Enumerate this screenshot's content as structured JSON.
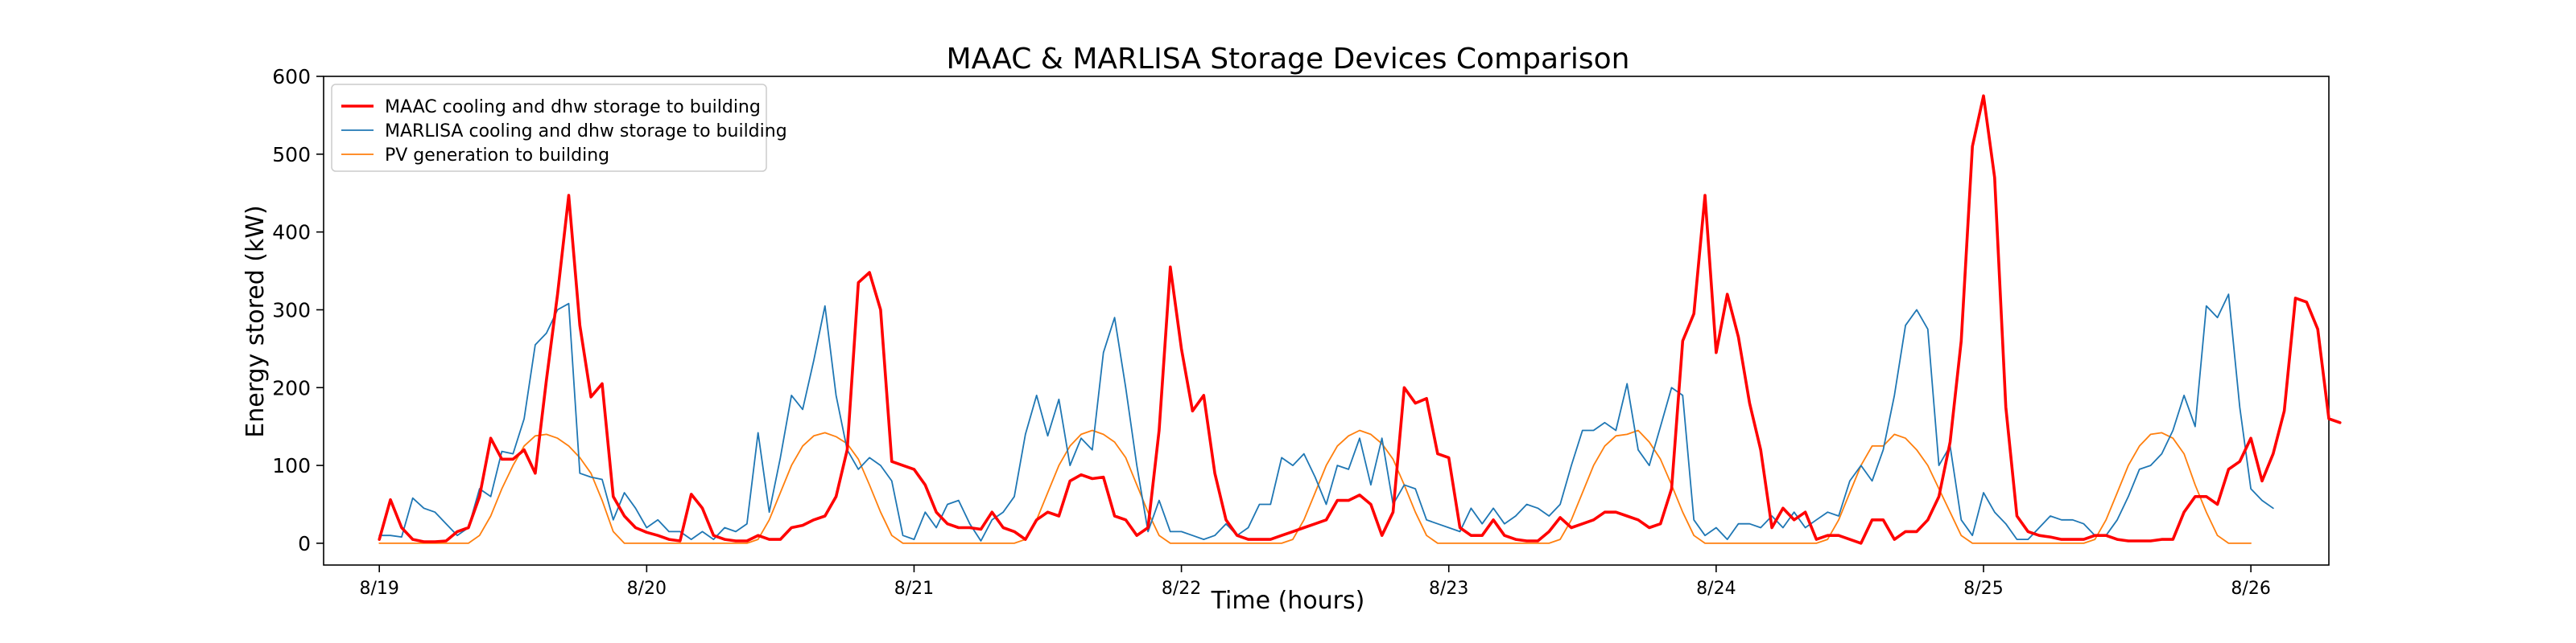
{
  "chart_data": {
    "type": "line",
    "title": "MAAC & MARLISA Storage Devices Comparison",
    "xlabel": "Time (hours)",
    "ylabel": "Energy stored (kW)",
    "x_unit": "hour",
    "x_start": "8/19 00:00",
    "x_step_hours": 1,
    "x_ticks": [
      "8/19",
      "8/20",
      "8/21",
      "8/22",
      "8/23",
      "8/24",
      "8/25",
      "8/26"
    ],
    "xlim": [
      "8/18 19:00",
      "8/26 07:00"
    ],
    "y_ticks": [
      0,
      100,
      200,
      300,
      400,
      500,
      600
    ],
    "ylim": [
      -28,
      600
    ],
    "grid": false,
    "legend_position": "top-left",
    "series": [
      {
        "name": "MAAC cooling and dhw storage to building",
        "color": "#ff0000",
        "values": [
          5,
          56,
          20,
          5,
          2,
          2,
          3,
          15,
          20,
          60,
          135,
          108,
          108,
          120,
          90,
          210,
          320,
          447,
          280,
          188,
          205,
          60,
          35,
          20,
          14,
          10,
          5,
          3,
          63,
          45,
          10,
          5,
          3,
          3,
          10,
          5,
          5,
          20,
          23,
          30,
          35,
          60,
          120,
          335,
          348,
          300,
          105,
          100,
          95,
          75,
          40,
          25,
          20,
          20,
          18,
          40,
          20,
          15,
          5,
          30,
          40,
          35,
          80,
          88,
          83,
          85,
          35,
          30,
          10,
          20,
          145,
          355,
          250,
          170,
          190,
          90,
          30,
          10,
          5,
          5,
          5,
          10,
          15,
          20,
          25,
          30,
          55,
          55,
          62,
          50,
          10,
          40,
          200,
          180,
          186,
          115,
          110,
          20,
          10,
          10,
          30,
          10,
          5,
          3,
          3,
          15,
          33,
          20,
          25,
          30,
          40,
          40,
          35,
          30,
          20,
          25,
          70,
          260,
          295,
          447,
          245,
          320,
          265,
          180,
          120,
          20,
          45,
          30,
          40,
          5,
          10,
          10,
          5,
          0,
          30,
          30,
          5,
          15,
          15,
          30,
          60,
          130,
          260,
          510,
          575,
          470,
          175,
          35,
          15,
          10,
          8,
          5,
          5,
          5,
          10,
          10,
          5,
          3,
          3,
          3,
          5,
          5,
          40,
          60,
          60,
          50,
          95,
          105,
          135,
          80,
          115,
          170,
          315,
          310,
          275,
          160,
          155
        ]
      },
      {
        "name": "MARLISA cooling and dhw storage to building",
        "color": "#1f77b4",
        "values": [
          10,
          10,
          8,
          58,
          45,
          40,
          25,
          10,
          20,
          70,
          60,
          118,
          115,
          160,
          255,
          270,
          300,
          308,
          90,
          85,
          82,
          30,
          65,
          45,
          20,
          30,
          15,
          15,
          5,
          15,
          5,
          20,
          15,
          25,
          142,
          40,
          110,
          190,
          172,
          235,
          305,
          190,
          120,
          95,
          110,
          100,
          80,
          10,
          5,
          40,
          20,
          50,
          55,
          25,
          3,
          30,
          40,
          60,
          140,
          190,
          138,
          185,
          100,
          135,
          120,
          245,
          290,
          200,
          100,
          15,
          55,
          15,
          15,
          10,
          5,
          10,
          25,
          10,
          20,
          50,
          50,
          110,
          100,
          115,
          85,
          50,
          100,
          95,
          135,
          75,
          135,
          50,
          75,
          70,
          30,
          25,
          20,
          15,
          45,
          25,
          45,
          25,
          35,
          50,
          45,
          35,
          50,
          100,
          145,
          145,
          155,
          145,
          205,
          120,
          100,
          150,
          200,
          190,
          30,
          10,
          20,
          5,
          25,
          25,
          20,
          35,
          20,
          40,
          20,
          30,
          40,
          35,
          80,
          100,
          80,
          120,
          190,
          280,
          300,
          275,
          100,
          125,
          30,
          10,
          65,
          40,
          25,
          5,
          5,
          20,
          35,
          30,
          30,
          25,
          10,
          10,
          30,
          60,
          95,
          100,
          115,
          145,
          190,
          150,
          305,
          290,
          320,
          175,
          70,
          55,
          45
        ]
      },
      {
        "name": "PV generation to building",
        "color": "#ff7f0e",
        "values": [
          0,
          0,
          0,
          0,
          0,
          0,
          0,
          0,
          0,
          10,
          35,
          70,
          100,
          125,
          138,
          140,
          135,
          125,
          110,
          90,
          55,
          15,
          0,
          0,
          0,
          0,
          0,
          0,
          0,
          0,
          0,
          0,
          0,
          0,
          5,
          30,
          65,
          100,
          125,
          138,
          142,
          137,
          128,
          108,
          75,
          40,
          10,
          0,
          0,
          0,
          0,
          0,
          0,
          0,
          0,
          0,
          0,
          0,
          5,
          30,
          65,
          100,
          125,
          140,
          145,
          140,
          130,
          110,
          75,
          40,
          10,
          0,
          0,
          0,
          0,
          0,
          0,
          0,
          0,
          0,
          0,
          0,
          5,
          30,
          65,
          100,
          125,
          138,
          145,
          140,
          128,
          108,
          75,
          40,
          10,
          0,
          0,
          0,
          0,
          0,
          0,
          0,
          0,
          0,
          0,
          0,
          5,
          30,
          65,
          100,
          125,
          138,
          140,
          145,
          130,
          108,
          75,
          40,
          10,
          0,
          0,
          0,
          0,
          0,
          0,
          0,
          0,
          0,
          0,
          0,
          5,
          30,
          65,
          100,
          125,
          125,
          140,
          135,
          120,
          100,
          70,
          40,
          10,
          0,
          0,
          0,
          0,
          0,
          0,
          0,
          0,
          0,
          0,
          0,
          5,
          30,
          65,
          100,
          125,
          140,
          142,
          135,
          115,
          75,
          40,
          10,
          0,
          0,
          0
        ]
      }
    ]
  }
}
